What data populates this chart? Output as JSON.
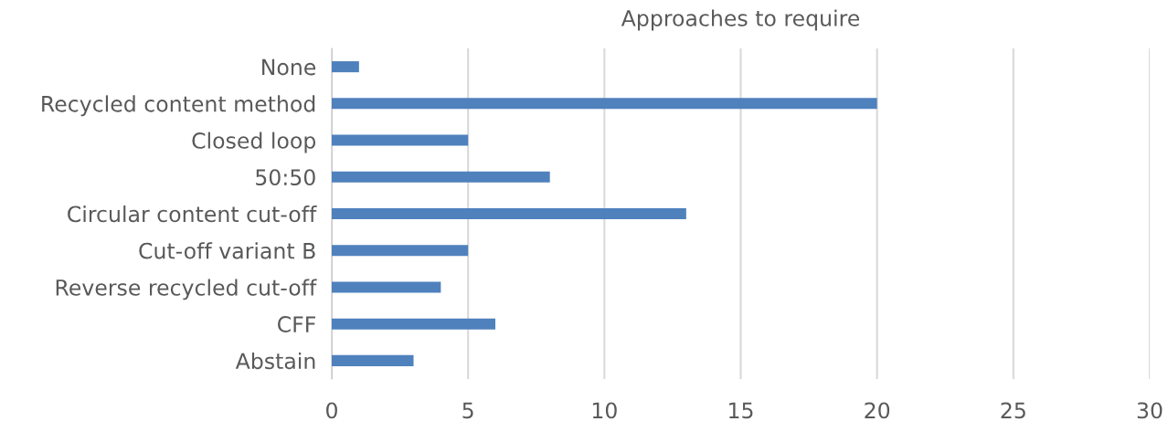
{
  "chart_data": {
    "type": "bar",
    "orientation": "horizontal",
    "title": "Approaches to require",
    "categories": [
      "None",
      "Recycled content method",
      "Closed loop",
      "50:50",
      "Circular content cut-off",
      "Cut-off variant B",
      "Reverse recycled cut-off",
      "CFF",
      "Abstain"
    ],
    "values": [
      1,
      20,
      5,
      8,
      13,
      5,
      4,
      6,
      3
    ],
    "color": "#4f81bd",
    "xlim": [
      0,
      30
    ],
    "xticks": [
      0,
      5,
      10,
      15,
      20,
      25,
      30
    ],
    "grid": "x"
  }
}
